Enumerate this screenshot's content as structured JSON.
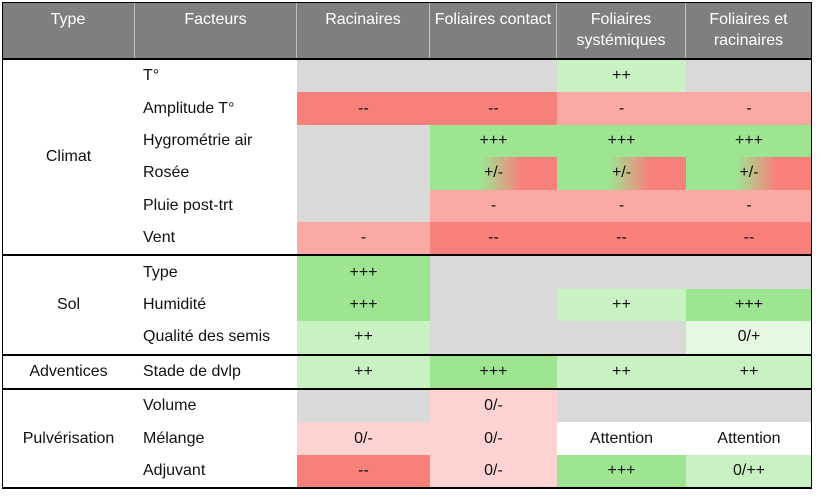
{
  "header": {
    "columns": [
      "Type",
      "Facteurs",
      "Racinaires",
      "Foliaires contact",
      "Foliaires systémiques",
      "Foliaires et racinaires"
    ]
  },
  "groups": [
    {
      "type": "Climat",
      "rows": [
        {
          "factor": "T°",
          "cells": [
            {
              "fill": "#d9d9d9"
            },
            {
              "fill": "#d9d9d9"
            },
            {
              "text": "++",
              "fill": "#c9f2c2"
            },
            {
              "fill": "#d9d9d9"
            }
          ]
        },
        {
          "factor": "Amplitude T°",
          "cells": [
            {
              "text": "--",
              "fill": "#f8807a"
            },
            {
              "text": "--",
              "fill": "#f8807a"
            },
            {
              "text": "-",
              "fill": "#faa9a5"
            },
            {
              "text": "-",
              "fill": "#faa9a5"
            }
          ]
        },
        {
          "factor": "Hygrométrie air",
          "cells": [
            {
              "fill": "#d9d9d9"
            },
            {
              "text": "+++",
              "fill": "#9ee592"
            },
            {
              "text": "+++",
              "fill": "#9ee592"
            },
            {
              "text": "+++",
              "fill": "#9ee592"
            }
          ]
        },
        {
          "factor": "Rosée",
          "cells": [
            {
              "fill": "#d9d9d9"
            },
            {
              "text": "+/-",
              "fill": "linear-gradient(90deg,#9ee592 40%,#f8807a 72%)"
            },
            {
              "text": "+/-",
              "fill": "linear-gradient(90deg,#9ee592 40%,#f8807a 72%)"
            },
            {
              "text": "+/-",
              "fill": "linear-gradient(90deg,#9ee592 40%,#f8807a 72%)"
            }
          ]
        },
        {
          "factor": "Pluie post-trt",
          "cells": [
            {
              "fill": "#d9d9d9"
            },
            {
              "text": "-",
              "fill": "#faa9a5"
            },
            {
              "text": "-",
              "fill": "#faa9a5"
            },
            {
              "text": "-",
              "fill": "#faa9a5"
            }
          ]
        },
        {
          "factor": "Vent",
          "cells": [
            {
              "text": "-",
              "fill": "#faa9a5"
            },
            {
              "text": "--",
              "fill": "#f8807a"
            },
            {
              "text": "--",
              "fill": "#f8807a"
            },
            {
              "text": "--",
              "fill": "#f8807a"
            }
          ]
        }
      ]
    },
    {
      "type": "Sol",
      "rows": [
        {
          "factor": "Type",
          "cells": [
            {
              "text": "+++",
              "fill": "#9ee592"
            },
            {
              "fill": "#d9d9d9"
            },
            {
              "fill": "#d9d9d9"
            },
            {
              "fill": "#d9d9d9"
            }
          ]
        },
        {
          "factor": "Humidité",
          "cells": [
            {
              "text": "+++",
              "fill": "#9ee592"
            },
            {
              "fill": "#d9d9d9"
            },
            {
              "text": "++",
              "fill": "#c9f2c2"
            },
            {
              "text": "+++",
              "fill": "#9ee592"
            }
          ]
        },
        {
          "factor": "Qualité des semis",
          "cells": [
            {
              "text": "++",
              "fill": "#c9f2c2"
            },
            {
              "fill": "#d9d9d9"
            },
            {
              "fill": "#d9d9d9"
            },
            {
              "text": "0/+",
              "fill": "#e3f8de"
            }
          ]
        }
      ]
    },
    {
      "type": "Adventices",
      "rows": [
        {
          "factor": "Stade de dvlp",
          "cells": [
            {
              "text": "++",
              "fill": "#c9f2c2"
            },
            {
              "text": "+++",
              "fill": "#9ee592"
            },
            {
              "text": "++",
              "fill": "#c9f2c2"
            },
            {
              "text": "++",
              "fill": "#c9f2c2"
            }
          ]
        }
      ]
    },
    {
      "type": "Pulvérisation",
      "rows": [
        {
          "factor": "Volume",
          "cells": [
            {
              "fill": "#d9d9d9"
            },
            {
              "text": "0/-",
              "fill": "#fdd3d1"
            },
            {
              "fill": "#d9d9d9"
            },
            {
              "fill": "#d9d9d9"
            }
          ]
        },
        {
          "factor": "Mélange",
          "cells": [
            {
              "text": "0/-",
              "fill": "#fdd3d1"
            },
            {
              "text": "0/-",
              "fill": "#fdd3d1"
            },
            {
              "text": "Attention",
              "fill": "#ffffff"
            },
            {
              "text": "Attention",
              "fill": "#ffffff"
            }
          ]
        },
        {
          "factor": "Adjuvant",
          "cells": [
            {
              "text": "--",
              "fill": "#f8807a"
            },
            {
              "text": "0/-",
              "fill": "#fdd3d1"
            },
            {
              "text": "+++",
              "fill": "#9ee592"
            },
            {
              "text": "0/++",
              "fill": "#c9f2c2"
            }
          ]
        }
      ]
    }
  ]
}
